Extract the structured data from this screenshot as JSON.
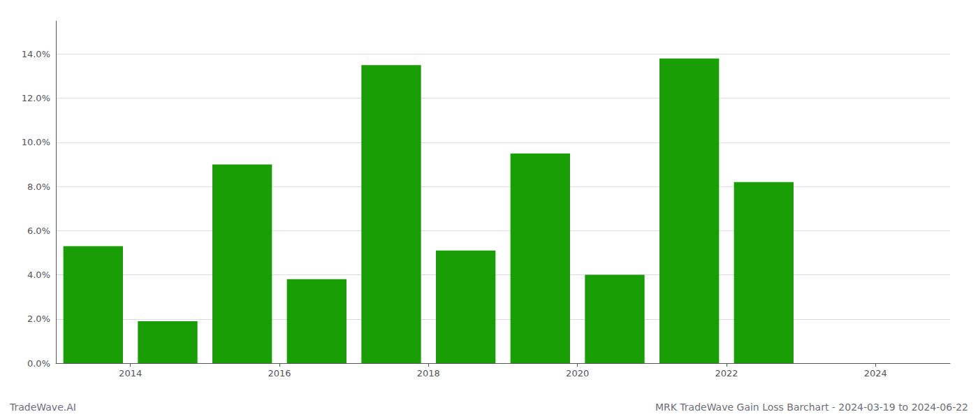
{
  "chart_data": {
    "type": "bar",
    "x": [
      2014,
      2015,
      2016,
      2017,
      2018,
      2019,
      2020,
      2021,
      2022,
      2023
    ],
    "values": [
      0.053,
      0.019,
      0.09,
      0.038,
      0.135,
      0.051,
      0.095,
      0.04,
      0.138,
      0.082
    ],
    "color": "#1a9e06",
    "xlim": [
      2013.5,
      2025.5
    ],
    "xticks": [
      {
        "value": 2014.5,
        "label": "2014"
      },
      {
        "value": 2016.5,
        "label": "2016"
      },
      {
        "value": 2018.5,
        "label": "2018"
      },
      {
        "value": 2020.5,
        "label": "2020"
      },
      {
        "value": 2022.5,
        "label": "2022"
      },
      {
        "value": 2024.5,
        "label": "2024"
      }
    ],
    "ylim": [
      0,
      0.155
    ],
    "yticks": [
      {
        "value": 0.0,
        "label": "0.0%"
      },
      {
        "value": 0.02,
        "label": "2.0%"
      },
      {
        "value": 0.04,
        "label": "4.0%"
      },
      {
        "value": 0.06,
        "label": "6.0%"
      },
      {
        "value": 0.08,
        "label": "8.0%"
      },
      {
        "value": 0.1,
        "label": "10.0%"
      },
      {
        "value": 0.12,
        "label": "12.0%"
      },
      {
        "value": 0.14,
        "label": "14.0%"
      }
    ],
    "grid": true,
    "annotations": [
      "TradeWave.AI",
      "MRK TradeWave Gain Loss Barchart - 2024-03-19 to 2024-06-22"
    ]
  }
}
